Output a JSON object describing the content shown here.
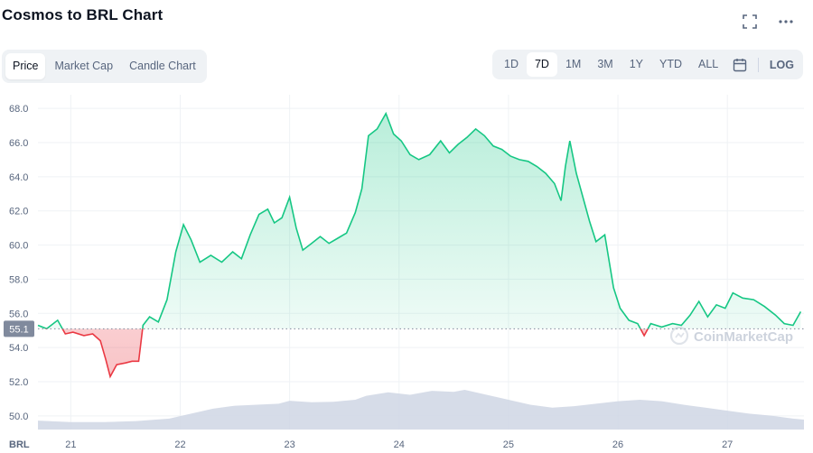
{
  "header": {
    "title": "Cosmos to BRL Chart"
  },
  "toolbar": {
    "icons": [
      "fullscreen-icon",
      "more-icon"
    ],
    "chart_tabs": [
      "Price",
      "Market Cap",
      "Candle Chart"
    ],
    "active_tab": "Price",
    "ranges": [
      "1D",
      "7D",
      "1M",
      "3M",
      "1Y",
      "YTD",
      "ALL"
    ],
    "active_range": "7D",
    "calendar_icon": "calendar-icon",
    "log_label": "LOG"
  },
  "watermark": "CoinMarketCap",
  "colors": {
    "up": "#16c784",
    "down": "#ea3943",
    "volume": "#cfd6e4",
    "grid": "#eff2f5"
  },
  "chart_data": {
    "type": "area",
    "currency_label": "BRL",
    "open_price": 55.1,
    "open_price_label": "55.1",
    "ylim": [
      49.2,
      68.8
    ],
    "yticks": [
      "50.0",
      "52.0",
      "54.0",
      "56.0",
      "58.0",
      "60.0",
      "62.0",
      "64.0",
      "66.0",
      "68.0"
    ],
    "xlim": [
      20.7,
      27.7
    ],
    "xticks": [
      {
        "x": 21,
        "label": "21"
      },
      {
        "x": 22,
        "label": "22"
      },
      {
        "x": 23,
        "label": "23"
      },
      {
        "x": 24,
        "label": "24"
      },
      {
        "x": 25,
        "label": "25"
      },
      {
        "x": 26,
        "label": "26"
      },
      {
        "x": 27,
        "label": "27"
      }
    ],
    "price": [
      [
        20.7,
        55.3
      ],
      [
        20.78,
        55.1
      ],
      [
        20.88,
        55.6
      ],
      [
        20.95,
        54.8
      ],
      [
        21.02,
        54.9
      ],
      [
        21.12,
        54.7
      ],
      [
        21.2,
        54.8
      ],
      [
        21.27,
        54.4
      ],
      [
        21.32,
        53.3
      ],
      [
        21.36,
        52.3
      ],
      [
        21.42,
        53.0
      ],
      [
        21.5,
        53.1
      ],
      [
        21.56,
        53.2
      ],
      [
        21.62,
        53.2
      ],
      [
        21.66,
        55.3
      ],
      [
        21.72,
        55.8
      ],
      [
        21.8,
        55.5
      ],
      [
        21.88,
        56.8
      ],
      [
        21.96,
        59.6
      ],
      [
        22.03,
        61.2
      ],
      [
        22.1,
        60.3
      ],
      [
        22.18,
        59.0
      ],
      [
        22.28,
        59.4
      ],
      [
        22.38,
        59.0
      ],
      [
        22.48,
        59.6
      ],
      [
        22.56,
        59.2
      ],
      [
        22.64,
        60.6
      ],
      [
        22.72,
        61.8
      ],
      [
        22.8,
        62.1
      ],
      [
        22.86,
        61.3
      ],
      [
        22.93,
        61.6
      ],
      [
        23.0,
        62.8
      ],
      [
        23.06,
        61.0
      ],
      [
        23.12,
        59.7
      ],
      [
        23.2,
        60.1
      ],
      [
        23.28,
        60.5
      ],
      [
        23.36,
        60.1
      ],
      [
        23.44,
        60.4
      ],
      [
        23.52,
        60.7
      ],
      [
        23.6,
        61.9
      ],
      [
        23.66,
        63.3
      ],
      [
        23.72,
        66.4
      ],
      [
        23.8,
        66.8
      ],
      [
        23.88,
        67.7
      ],
      [
        23.95,
        66.5
      ],
      [
        24.02,
        66.1
      ],
      [
        24.1,
        65.3
      ],
      [
        24.18,
        65.0
      ],
      [
        24.28,
        65.3
      ],
      [
        24.38,
        66.1
      ],
      [
        24.46,
        65.4
      ],
      [
        24.54,
        65.9
      ],
      [
        24.62,
        66.3
      ],
      [
        24.7,
        66.8
      ],
      [
        24.78,
        66.4
      ],
      [
        24.86,
        65.8
      ],
      [
        24.94,
        65.6
      ],
      [
        25.02,
        65.2
      ],
      [
        25.1,
        65.0
      ],
      [
        25.18,
        64.9
      ],
      [
        25.26,
        64.6
      ],
      [
        25.34,
        64.2
      ],
      [
        25.42,
        63.6
      ],
      [
        25.48,
        62.6
      ],
      [
        25.52,
        64.6
      ],
      [
        25.56,
        66.1
      ],
      [
        25.62,
        64.2
      ],
      [
        25.68,
        62.8
      ],
      [
        25.74,
        61.4
      ],
      [
        25.8,
        60.2
      ],
      [
        25.88,
        60.6
      ],
      [
        25.96,
        57.5
      ],
      [
        26.02,
        56.3
      ],
      [
        26.1,
        55.6
      ],
      [
        26.18,
        55.4
      ],
      [
        26.24,
        54.7
      ],
      [
        26.3,
        55.4
      ],
      [
        26.4,
        55.2
      ],
      [
        26.5,
        55.4
      ],
      [
        26.58,
        55.3
      ],
      [
        26.66,
        55.9
      ],
      [
        26.74,
        56.7
      ],
      [
        26.82,
        55.8
      ],
      [
        26.9,
        56.5
      ],
      [
        26.98,
        56.3
      ],
      [
        27.05,
        57.2
      ],
      [
        27.14,
        56.9
      ],
      [
        27.24,
        56.8
      ],
      [
        27.34,
        56.4
      ],
      [
        27.44,
        55.9
      ],
      [
        27.52,
        55.4
      ],
      [
        27.6,
        55.3
      ],
      [
        27.67,
        56.1
      ]
    ],
    "volume_relative": [
      [
        20.7,
        0.18
      ],
      [
        21.0,
        0.15
      ],
      [
        21.3,
        0.15
      ],
      [
        21.6,
        0.17
      ],
      [
        21.9,
        0.22
      ],
      [
        22.1,
        0.32
      ],
      [
        22.3,
        0.42
      ],
      [
        22.5,
        0.48
      ],
      [
        22.7,
        0.5
      ],
      [
        22.9,
        0.52
      ],
      [
        23.0,
        0.58
      ],
      [
        23.2,
        0.55
      ],
      [
        23.4,
        0.56
      ],
      [
        23.6,
        0.6
      ],
      [
        23.7,
        0.68
      ],
      [
        23.9,
        0.75
      ],
      [
        24.1,
        0.7
      ],
      [
        24.3,
        0.78
      ],
      [
        24.5,
        0.76
      ],
      [
        24.6,
        0.8
      ],
      [
        24.8,
        0.7
      ],
      [
        25.0,
        0.6
      ],
      [
        25.2,
        0.5
      ],
      [
        25.4,
        0.44
      ],
      [
        25.6,
        0.47
      ],
      [
        25.8,
        0.52
      ],
      [
        26.0,
        0.57
      ],
      [
        26.2,
        0.6
      ],
      [
        26.4,
        0.57
      ],
      [
        26.6,
        0.5
      ],
      [
        26.8,
        0.44
      ],
      [
        27.0,
        0.38
      ],
      [
        27.2,
        0.32
      ],
      [
        27.4,
        0.28
      ],
      [
        27.6,
        0.22
      ],
      [
        27.7,
        0.2
      ]
    ]
  }
}
